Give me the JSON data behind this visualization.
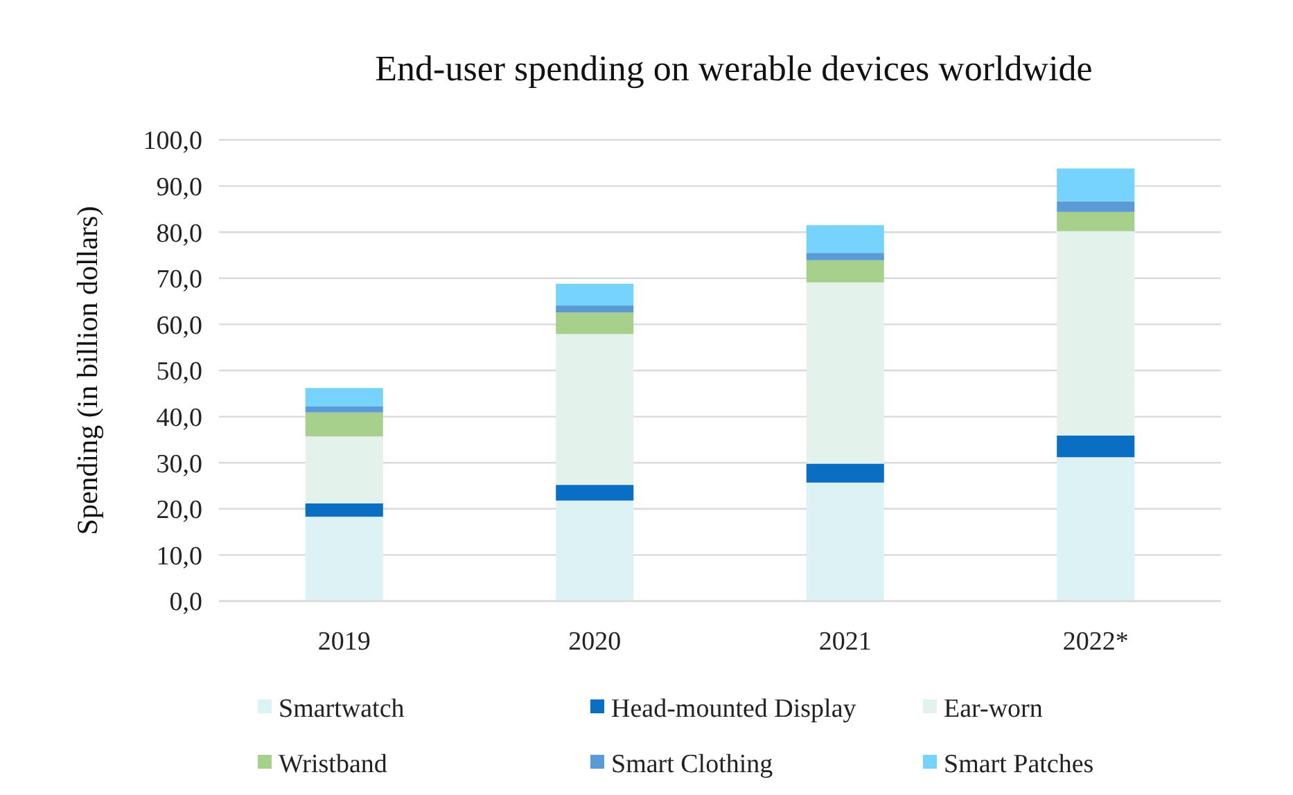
{
  "chart_data": {
    "type": "bar",
    "title": "End-user spending on werable devices worldwide",
    "ylabel": "Spending (in billion dollars)",
    "categories": [
      "2019",
      "2020",
      "2021",
      "2022*"
    ],
    "stacked": true,
    "series": [
      {
        "name": "Smartwatch",
        "color": "#dcf2f4",
        "values": [
          18.3,
          21.8,
          25.7,
          31.2
        ]
      },
      {
        "name": "Head-mounted Display",
        "color": "#0a6fc2",
        "values": [
          2.9,
          3.4,
          4.1,
          4.7
        ]
      },
      {
        "name": "Ear-worn",
        "color": "#e3f3eb",
        "values": [
          14.5,
          32.7,
          39.3,
          44.3
        ]
      },
      {
        "name": "Wristband",
        "color": "#a8d08d",
        "values": [
          5.2,
          4.7,
          4.8,
          4.2
        ]
      },
      {
        "name": "Smart Clothing",
        "color": "#5b9bd5",
        "values": [
          1.3,
          1.5,
          1.6,
          2.3
        ]
      },
      {
        "name": "Smart Patches",
        "color": "#75d3fd",
        "values": [
          4.0,
          4.7,
          6.0,
          7.1
        ]
      }
    ],
    "ylim": [
      0,
      100
    ],
    "yticks": [
      {
        "value": 0,
        "label": "0,0"
      },
      {
        "value": 10,
        "label": "10,0"
      },
      {
        "value": 20,
        "label": "20,0"
      },
      {
        "value": 30,
        "label": "30,0"
      },
      {
        "value": 40,
        "label": "40,0"
      },
      {
        "value": 50,
        "label": "50,0"
      },
      {
        "value": 60,
        "label": "60,0"
      },
      {
        "value": 70,
        "label": "70,0"
      },
      {
        "value": 80,
        "label": "80,0"
      },
      {
        "value": 90,
        "label": "90,0"
      },
      {
        "value": 100,
        "label": "100,0"
      }
    ],
    "grid": "y",
    "legend": "bottom"
  }
}
